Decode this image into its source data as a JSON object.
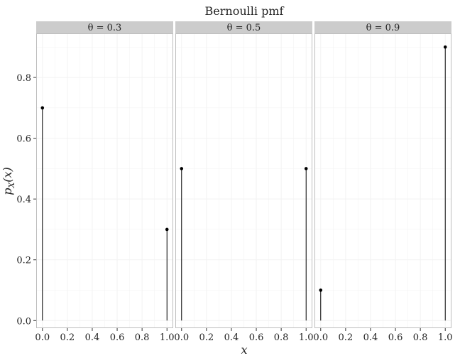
{
  "chart_data": {
    "type": "stem",
    "title": "Bernoulli pmf",
    "xlabel": "x",
    "ylabel": "p_X(x)",
    "xlim": [
      -0.05,
      1.05
    ],
    "ylim": [
      -0.025,
      0.945
    ],
    "x_ticks": [
      "0.0",
      "0.2",
      "0.4",
      "0.6",
      "0.8",
      "1.0"
    ],
    "y_ticks": [
      "0.0",
      "0.2",
      "0.4",
      "0.6",
      "0.8"
    ],
    "grid": true,
    "panels": [
      {
        "label": "θ = 0.3",
        "x": [
          0,
          1
        ],
        "y": [
          0.7,
          0.3
        ]
      },
      {
        "label": "θ = 0.5",
        "x": [
          0,
          1
        ],
        "y": [
          0.5,
          0.5
        ]
      },
      {
        "label": "θ = 0.9",
        "x": [
          0,
          1
        ],
        "y": [
          0.1,
          0.9
        ]
      }
    ]
  },
  "colors": {
    "strip_fill": "#cccccc",
    "grid": "#f2f2f2",
    "panel_border": "#bdbdbd",
    "mark": "#000000"
  }
}
